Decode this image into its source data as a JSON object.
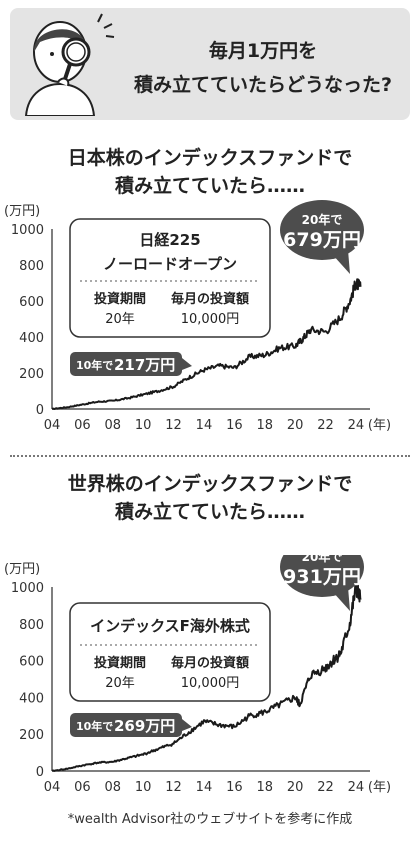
{
  "header": {
    "title_line1": "毎月1万円を",
    "title_line2": "積み立てていたらどうなった?"
  },
  "colors": {
    "line": "#1a1a1a",
    "bubble": "#4d4d4d",
    "header_bg": "#e4e4e4",
    "axis": "#555555"
  },
  "icons": [
    "person-with-magnifier-icon"
  ],
  "chart_data": [
    {
      "type": "line",
      "title_line1": "日本株のインデックスファンドで",
      "title_line2": "積み立てていたら……",
      "ylabel": "(万円)",
      "xunit": "(年)",
      "xticks": [
        "04",
        "06",
        "08",
        "10",
        "12",
        "14",
        "16",
        "18",
        "20",
        "22",
        "24"
      ],
      "yticks": [
        "0",
        "200",
        "400",
        "600",
        "800",
        "1000"
      ],
      "xlim": [
        2004,
        2024.4
      ],
      "ylim": [
        0,
        1000
      ],
      "grid": false,
      "info_box": {
        "fund_name_line1": "日経225",
        "fund_name_line2": "ノーロードオープン",
        "period_label": "投資期間",
        "period_value": "20年",
        "amount_label": "毎月の投資額",
        "amount_value": "10,000円"
      },
      "callout_10y": {
        "prefix": "10年で",
        "value": "217万円"
      },
      "callout_20y": {
        "prefix": "20年で",
        "value": "679万円"
      },
      "series": [
        {
          "x": [
            2004,
            2005,
            2006,
            2007,
            2008,
            2009,
            2010,
            2011,
            2012,
            2013,
            2014,
            2015,
            2016,
            2017,
            2018,
            2019,
            2020,
            2020.5,
            2021,
            2022,
            2023,
            2023.6,
            2024,
            2024.3
          ],
          "y": [
            0,
            10,
            25,
            40,
            45,
            60,
            80,
            100,
            125,
            175,
            217,
            240,
            230,
            290,
            300,
            340,
            350,
            390,
            440,
            430,
            510,
            600,
            700,
            679
          ]
        }
      ]
    },
    {
      "type": "line",
      "title_line1": "世界株のインデックスファンドで",
      "title_line2": "積み立てていたら……",
      "ylabel": "(万円)",
      "xunit": "(年)",
      "xticks": [
        "04",
        "06",
        "08",
        "10",
        "12",
        "14",
        "16",
        "18",
        "20",
        "22",
        "24"
      ],
      "yticks": [
        "0",
        "200",
        "400",
        "600",
        "800",
        "1000"
      ],
      "xlim": [
        2004,
        2024.4
      ],
      "ylim": [
        0,
        1000
      ],
      "grid": false,
      "info_box": {
        "fund_name_line1": "インデックスF海外株式",
        "fund_name_line2": "",
        "period_label": "投資期間",
        "period_value": "20年",
        "amount_label": "毎月の投資額",
        "amount_value": "10,000円"
      },
      "callout_10y": {
        "prefix": "10年で",
        "value": "269万円"
      },
      "callout_20y": {
        "prefix": "20年で",
        "value": "931万円"
      },
      "series": [
        {
          "x": [
            2004,
            2005,
            2006,
            2007,
            2008,
            2009,
            2010,
            2011,
            2012,
            2013,
            2014,
            2015,
            2016,
            2017,
            2018,
            2019,
            2020,
            2020.3,
            2021,
            2022,
            2022.5,
            2023,
            2023.6,
            2024,
            2024.3
          ],
          "y": [
            0,
            12,
            30,
            45,
            50,
            70,
            90,
            120,
            150,
            210,
            269,
            250,
            240,
            300,
            320,
            360,
            400,
            360,
            520,
            560,
            600,
            640,
            800,
            1000,
            931
          ]
        }
      ]
    }
  ],
  "footnote": "*wealth Advisor社のウェブサイトを参考に作成"
}
